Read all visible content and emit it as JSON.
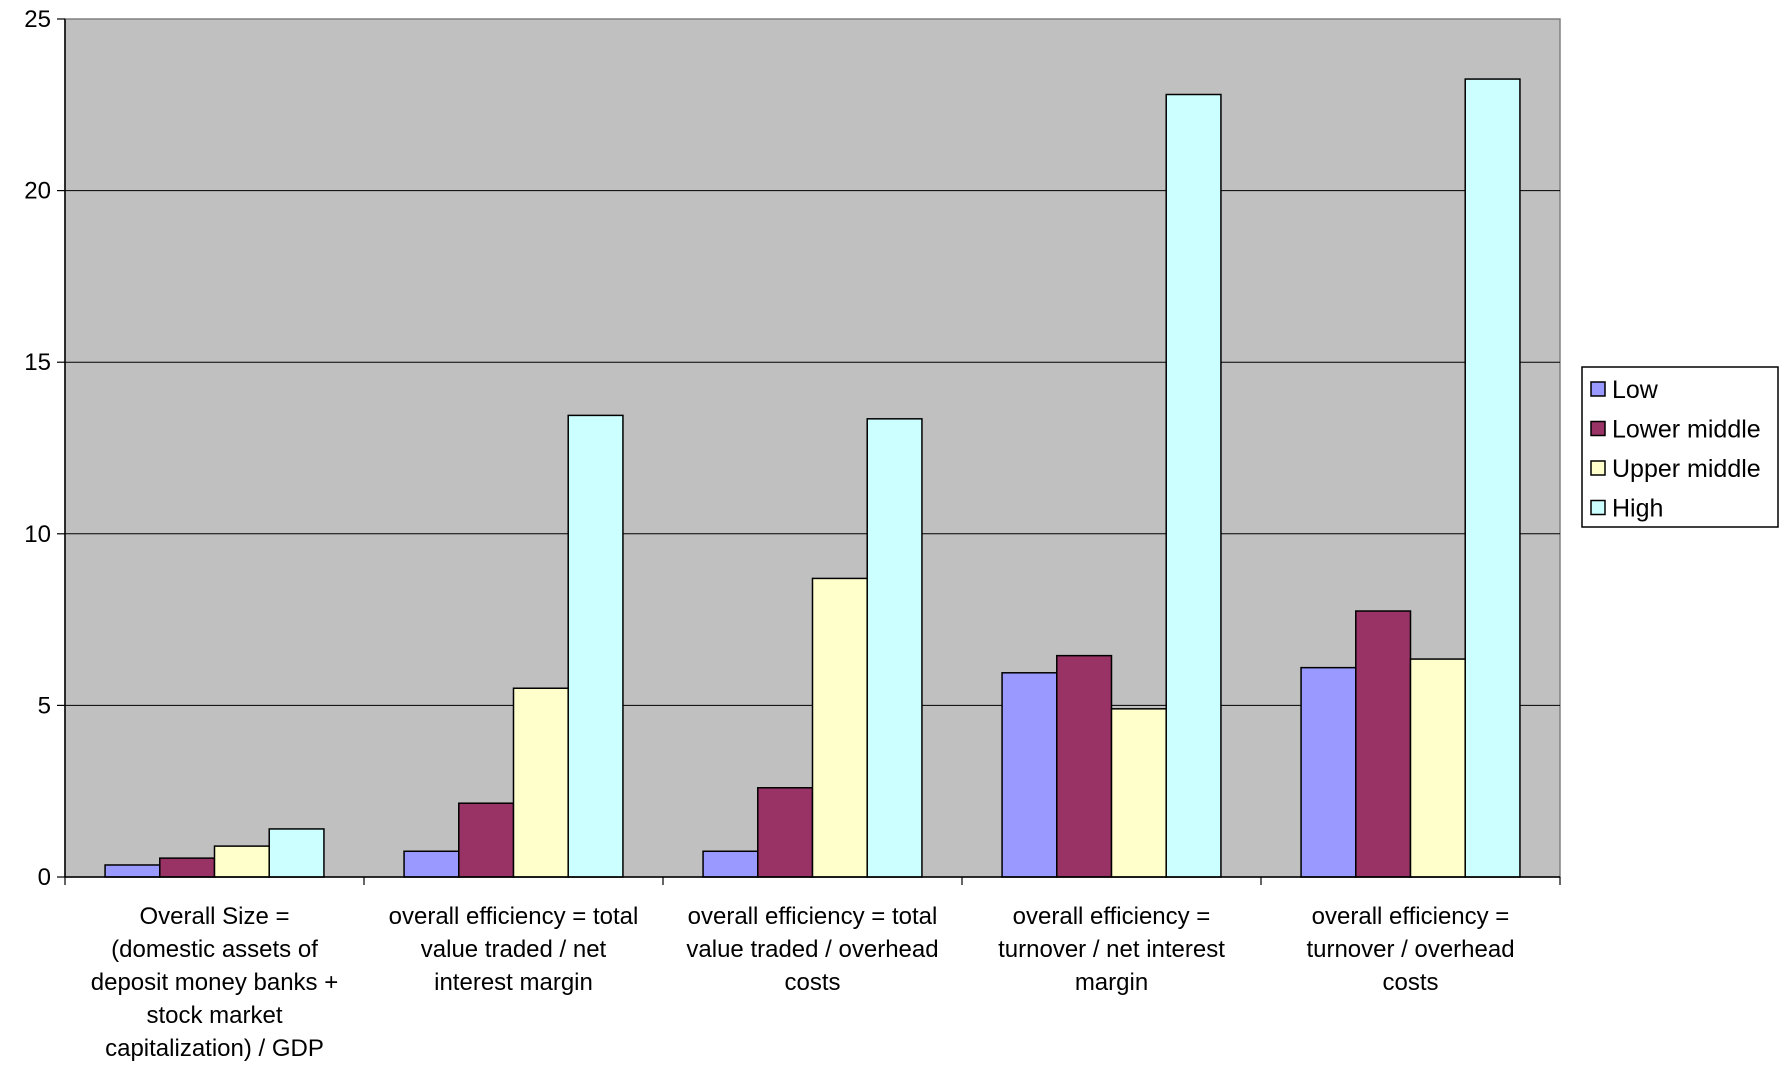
{
  "chart_data": {
    "type": "bar",
    "title": "",
    "xlabel": "",
    "ylabel": "",
    "ylim": [
      0,
      25
    ],
    "yticks": [
      0,
      5,
      10,
      15,
      20,
      25
    ],
    "grid": true,
    "legend_position": "right",
    "categories": [
      [
        "Overall Size =",
        "(domestic assets of",
        "deposit money banks +",
        "stock market",
        "capitalization) / GDP"
      ],
      [
        "overall efficiency = total",
        "value traded / net",
        "interest margin"
      ],
      [
        "overall efficiency = total",
        "value traded / overhead",
        "costs"
      ],
      [
        "overall efficiency =",
        "turnover / net interest",
        "margin"
      ],
      [
        "overall efficiency =",
        "turnover / overhead",
        "costs"
      ]
    ],
    "series": [
      {
        "name": "Low",
        "color": "#9999ff",
        "values": [
          0.35,
          0.75,
          0.75,
          5.95,
          6.1
        ]
      },
      {
        "name": "Lower middle",
        "color": "#993366",
        "values": [
          0.55,
          2.15,
          2.6,
          6.45,
          7.75
        ]
      },
      {
        "name": "Upper middle",
        "color": "#ffffcc",
        "values": [
          0.9,
          5.5,
          8.7,
          4.9,
          6.35
        ]
      },
      {
        "name": "High",
        "color": "#ccffff",
        "values": [
          1.4,
          13.45,
          13.35,
          22.8,
          23.25
        ]
      }
    ],
    "plot_background": "#c0c0c0"
  }
}
